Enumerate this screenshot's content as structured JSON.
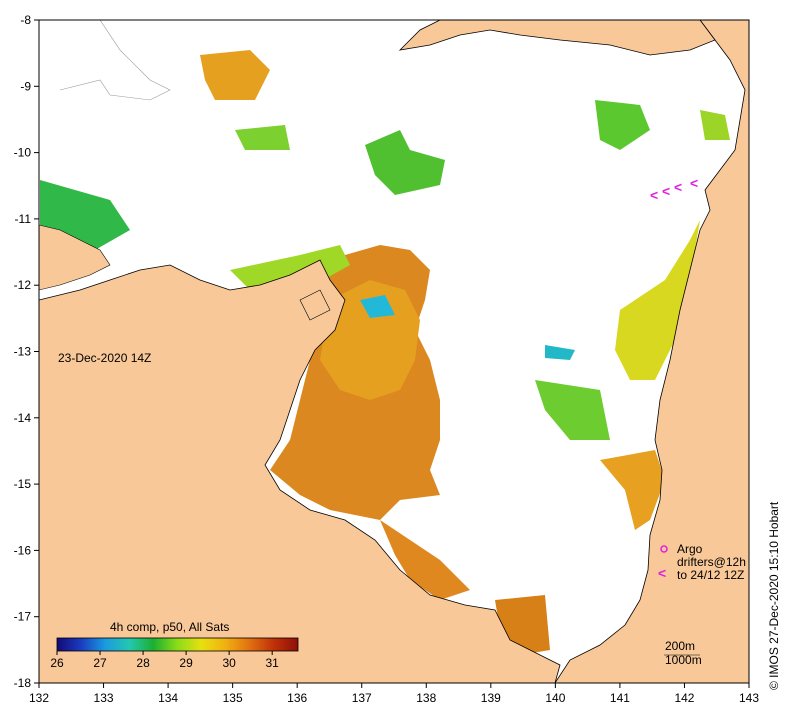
{
  "title": "23-Dec-2020 14Z",
  "credit": "© IMOS 27-Dec-2020 15:10 Hobart",
  "colorbar": {
    "title": "4h comp, p50, All Sats",
    "ticks": [
      "26",
      "27",
      "28",
      "29",
      "30",
      "31"
    ],
    "min": 26,
    "max": 31.6,
    "stops": [
      "#120a78",
      "#1a3cc0",
      "#1a9be0",
      "#22c8b0",
      "#1cb030",
      "#8cdc18",
      "#e8e010",
      "#f0b010",
      "#e07010",
      "#c03008",
      "#8c1008"
    ]
  },
  "axes": {
    "x_ticks": [
      "132",
      "133",
      "134",
      "135",
      "136",
      "137",
      "138",
      "139",
      "140",
      "141",
      "142",
      "143"
    ],
    "y_ticks": [
      "-8",
      "-9",
      "-10",
      "-11",
      "-12",
      "-13",
      "-14",
      "-15",
      "-16",
      "-17",
      "-18"
    ],
    "xlim": [
      132,
      143
    ],
    "ylim": [
      -18,
      -8
    ]
  },
  "legend": {
    "argo": "Argo",
    "drifters_line1": "drifters@12h",
    "drifters_line2": "to 24/12 12Z",
    "argo_color": "#e020e0",
    "drifter_color": "#e020e0"
  },
  "scale_notes": {
    "depth1": "200m",
    "depth2": "1000m"
  },
  "colors": {
    "land": "#f8c898",
    "ocean": "#ffffff",
    "coast": "#000000"
  }
}
